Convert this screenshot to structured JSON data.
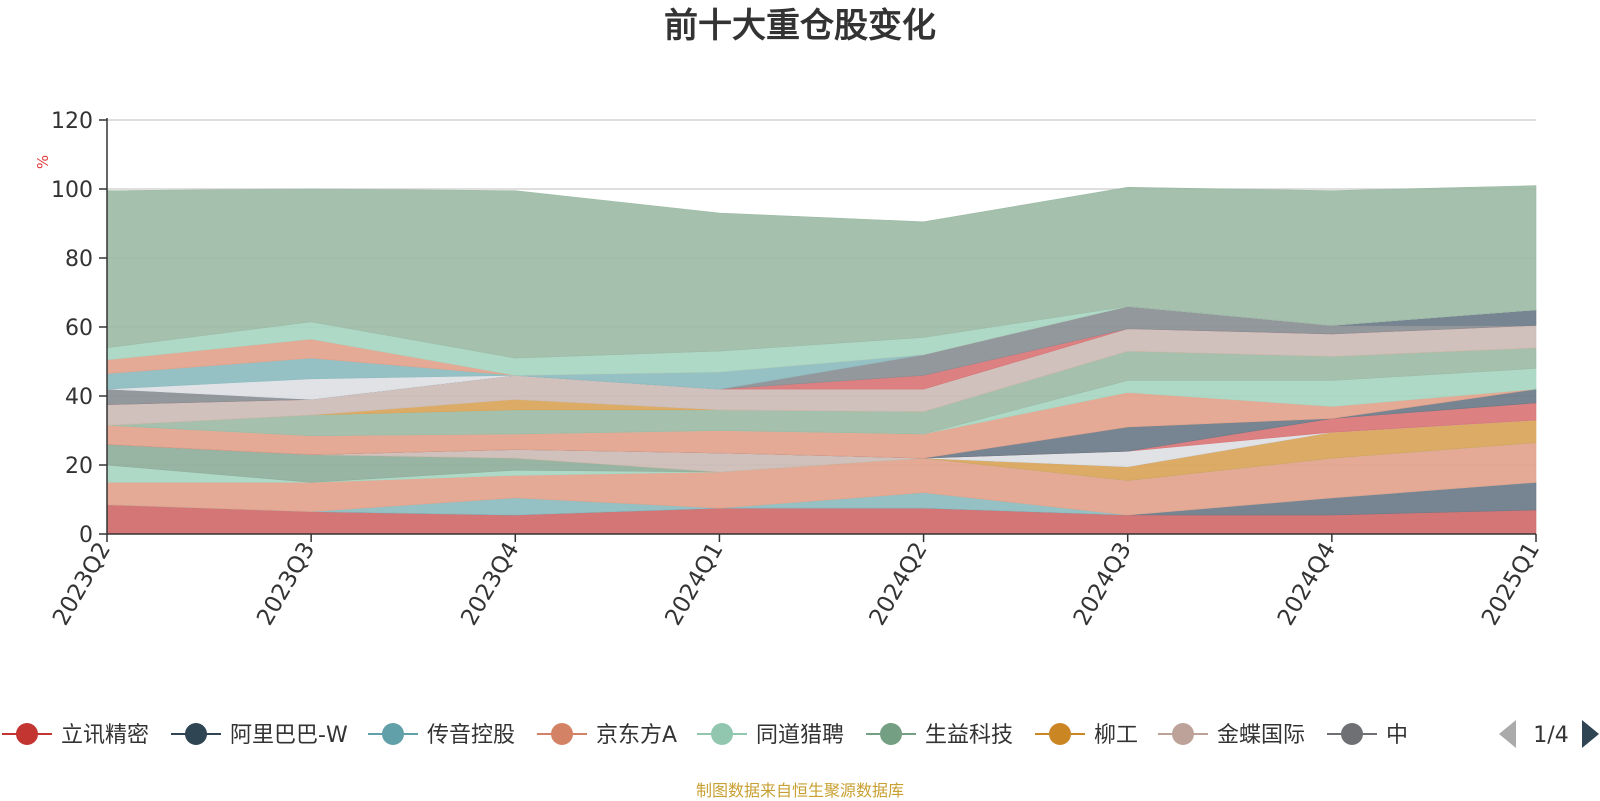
{
  "chart_data": {
    "type": "area",
    "stacked": true,
    "title": "前十大重仓股变化",
    "ylabel": "%",
    "ylim": [
      0,
      120
    ],
    "yticks": [
      0,
      20,
      40,
      60,
      80,
      100,
      120
    ],
    "grid": true,
    "x": [
      "2023Q2",
      "2023Q3",
      "2023Q4",
      "2024Q1",
      "2024Q2",
      "2024Q3",
      "2024Q4",
      "2025Q1"
    ],
    "series": [
      {
        "name": "立讯精密",
        "color": "#d06a6a",
        "values": [
          8.5,
          6.5,
          5.5,
          7.5,
          7.5,
          5.5,
          5.5,
          7.0
        ]
      },
      {
        "name": "阿里巴巴-W",
        "color": "#6b7b89",
        "values": [
          0,
          0,
          0,
          0,
          0,
          0,
          5.0,
          8.0
        ]
      },
      {
        "name": "传音控股",
        "color": "#8cbcc0",
        "values": [
          0,
          0,
          5.0,
          0,
          4.5,
          0,
          0,
          0
        ]
      },
      {
        "name": "京东方A",
        "color": "#e2a38c",
        "values": [
          6.5,
          8.5,
          6.5,
          10.5,
          10.0,
          10.0,
          11.5,
          11.5
        ]
      },
      {
        "name": "同道猎聘",
        "color": "#a8d6c2",
        "values": [
          5.0,
          0,
          1.5,
          0,
          0,
          0,
          0,
          0
        ]
      },
      {
        "name": "生益科技",
        "color": "#8fae9a",
        "values": [
          6.0,
          8.0,
          3.5,
          0,
          0,
          0,
          0,
          0
        ]
      },
      {
        "name": "柳工",
        "color": "#d9a55a",
        "values": [
          0,
          0,
          0,
          0,
          0,
          4.0,
          7.5,
          6.5
        ]
      },
      {
        "name": "金蝶国际",
        "color": "#ccbcb6",
        "values": [
          0,
          0,
          2.5,
          5.5,
          0,
          0,
          0,
          0
        ]
      },
      {
        "name": "中",
        "color": "#8a8f94",
        "values": [
          0,
          0,
          0,
          0,
          0,
          0,
          0,
          0
        ]
      },
      {
        "name": "",
        "color": "#dde0e4",
        "values": [
          0,
          0,
          0,
          0,
          0,
          4.5,
          0,
          0
        ]
      },
      {
        "name": "",
        "color": "#d97577",
        "values": [
          0,
          0,
          0,
          0,
          0,
          0,
          4.0,
          5.0
        ]
      },
      {
        "name": "",
        "color": "#6b7b89",
        "values": [
          0,
          0,
          0,
          0,
          0,
          7.0,
          0,
          4.0
        ]
      },
      {
        "name": "",
        "color": "#e2a38c",
        "values": [
          5.5,
          5.5,
          4.5,
          6.5,
          7.0,
          10.0,
          3.5,
          0
        ]
      },
      {
        "name": "",
        "color": "#a8d6c2",
        "values": [
          0,
          0,
          0,
          0,
          0,
          3.5,
          7.5,
          6.0
        ]
      },
      {
        "name": "",
        "color": "#9dbba6",
        "values": [
          0,
          6.0,
          7.0,
          6.0,
          6.5,
          8.5,
          7.0,
          6.0
        ]
      },
      {
        "name": "",
        "color": "#d9a55a",
        "values": [
          0,
          0,
          3.0,
          0,
          0,
          0,
          0,
          0
        ]
      },
      {
        "name": "",
        "color": "#ccbcb6",
        "values": [
          6.0,
          4.5,
          7.0,
          6.0,
          6.5,
          6.5,
          6.5,
          6.5
        ]
      },
      {
        "name": "",
        "color": "#d97577",
        "values": [
          0,
          0,
          0,
          0,
          4.0,
          0,
          0,
          0
        ]
      },
      {
        "name": "",
        "color": "#8a8f94",
        "values": [
          4.5,
          0,
          0,
          0,
          6.0,
          6.5,
          2.5,
          0
        ]
      },
      {
        "name": "",
        "color": "#6b7b89",
        "values": [
          0,
          0,
          0,
          0,
          0,
          0,
          0,
          4.5
        ]
      },
      {
        "name": "",
        "color": "#dde0e4",
        "values": [
          0,
          6.0,
          0,
          0,
          0,
          0,
          0,
          0
        ]
      },
      {
        "name": "",
        "color": "#8cbcc0",
        "values": [
          4.5,
          6.0,
          0,
          5.0,
          0,
          0,
          0,
          0
        ]
      },
      {
        "name": "",
        "color": "#e2a38c",
        "values": [
          4.0,
          5.5,
          0,
          0,
          0,
          0,
          0,
          0
        ]
      },
      {
        "name": "",
        "color": "#a8d6c2",
        "values": [
          3.5,
          5.0,
          5.0,
          6.0,
          5.0,
          0,
          0,
          0
        ]
      },
      {
        "name": "",
        "color": "#9dbba6",
        "values": [
          45.5,
          38.5,
          48.5,
          40.0,
          33.5,
          34.5,
          39.0,
          36.0
        ]
      }
    ]
  },
  "legend": {
    "items": [
      {
        "label": "立讯精密",
        "color": "#c23531"
      },
      {
        "label": "阿里巴巴-W",
        "color": "#2f4554"
      },
      {
        "label": "传音控股",
        "color": "#61a0a8"
      },
      {
        "label": "京东方A",
        "color": "#d48265"
      },
      {
        "label": "同道猎聘",
        "color": "#91c7ae"
      },
      {
        "label": "生益科技",
        "color": "#749f83"
      },
      {
        "label": "柳工",
        "color": "#ca8622"
      },
      {
        "label": "金蝶国际",
        "color": "#bda29a"
      },
      {
        "label": "中",
        "color": "#6e7074"
      }
    ],
    "page": "1/4"
  },
  "source": "制图数据来自恒生聚源数据库"
}
